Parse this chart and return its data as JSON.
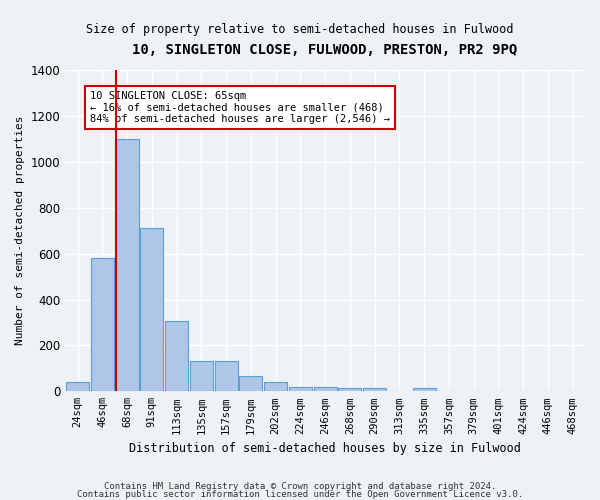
{
  "title": "10, SINGLETON CLOSE, FULWOOD, PRESTON, PR2 9PQ",
  "subtitle": "Size of property relative to semi-detached houses in Fulwood",
  "xlabel": "Distribution of semi-detached houses by size in Fulwood",
  "ylabel": "Number of semi-detached properties",
  "categories": [
    "24sqm",
    "46sqm",
    "68sqm",
    "91sqm",
    "113sqm",
    "135sqm",
    "157sqm",
    "179sqm",
    "202sqm",
    "224sqm",
    "246sqm",
    "268sqm",
    "290sqm",
    "313sqm",
    "335sqm",
    "357sqm",
    "379sqm",
    "401sqm",
    "424sqm",
    "446sqm",
    "468sqm"
  ],
  "values": [
    40,
    580,
    1100,
    710,
    305,
    130,
    130,
    65,
    40,
    20,
    20,
    15,
    15,
    0,
    15,
    0,
    0,
    0,
    0,
    0,
    0
  ],
  "bar_color": "#aec6e8",
  "bar_edge_color": "#5a9fd4",
  "pct_smaller": 16,
  "pct_larger": 84,
  "n_smaller": 468,
  "n_larger": 2546,
  "annotation_box_color": "#cc0000",
  "ylim": [
    0,
    1400
  ],
  "footnote1": "Contains HM Land Registry data © Crown copyright and database right 2024.",
  "footnote2": "Contains public sector information licensed under the Open Government Licence v3.0.",
  "background_color": "#eef2f7",
  "grid_color": "#ffffff"
}
